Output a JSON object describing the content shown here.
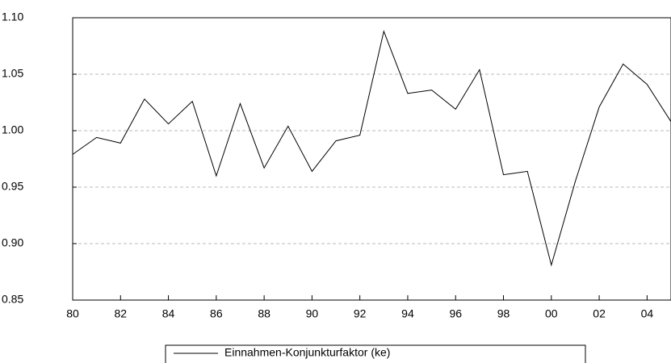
{
  "chart_data": {
    "type": "line",
    "x": [
      1980,
      1981,
      1982,
      1983,
      1984,
      1985,
      1986,
      1987,
      1988,
      1989,
      1990,
      1991,
      1992,
      1993,
      1994,
      1995,
      1996,
      1997,
      1998,
      1999,
      2000,
      2001,
      2002,
      2003,
      2004,
      2005
    ],
    "series": [
      {
        "name": "Einnahmen-Konjunkturfaktor (ke)",
        "color": "#000000",
        "values": [
          0.979,
          0.994,
          0.989,
          1.028,
          1.006,
          1.026,
          0.96,
          1.024,
          0.967,
          1.004,
          0.964,
          0.991,
          0.996,
          1.088,
          1.033,
          1.036,
          1.019,
          1.054,
          0.961,
          0.964,
          0.881,
          0.955,
          1.021,
          1.059,
          1.041,
          1.008
        ]
      }
    ],
    "xlim": [
      1980,
      2005
    ],
    "ylim": [
      0.85,
      1.1
    ],
    "xticks": [
      {
        "value": 1980,
        "label": "80"
      },
      {
        "value": 1982,
        "label": "82"
      },
      {
        "value": 1984,
        "label": "84"
      },
      {
        "value": 1986,
        "label": "86"
      },
      {
        "value": 1988,
        "label": "88"
      },
      {
        "value": 1990,
        "label": "90"
      },
      {
        "value": 1992,
        "label": "92"
      },
      {
        "value": 1994,
        "label": "94"
      },
      {
        "value": 1996,
        "label": "96"
      },
      {
        "value": 1998,
        "label": "98"
      },
      {
        "value": 2000,
        "label": "00"
      },
      {
        "value": 2002,
        "label": "02"
      },
      {
        "value": 2004,
        "label": "04"
      }
    ],
    "yticks": [
      {
        "value": 0.85,
        "label": "0.85"
      },
      {
        "value": 0.9,
        "label": "0.90"
      },
      {
        "value": 0.95,
        "label": "0.95"
      },
      {
        "value": 1.0,
        "label": "1.00"
      },
      {
        "value": 1.05,
        "label": "1.05"
      },
      {
        "value": 1.1,
        "label": "1.10"
      }
    ],
    "grid": true
  }
}
